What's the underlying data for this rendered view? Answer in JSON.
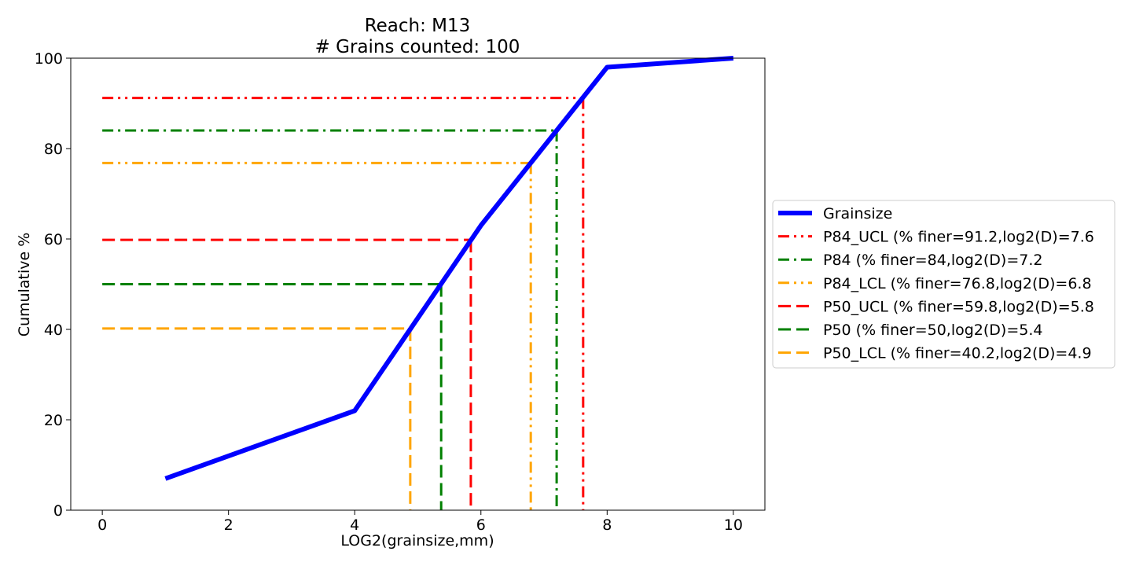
{
  "chart_data": {
    "type": "line",
    "title": "Reach: M13",
    "subtitle": "# Grains counted: 100",
    "xlabel": "LOG2(grainsize,mm)",
    "ylabel": "Cumulative %",
    "xlim": [
      -0.5,
      10.5
    ],
    "ylim": [
      0,
      100
    ],
    "xticks": [
      0,
      2,
      4,
      6,
      8,
      10
    ],
    "yticks": [
      0,
      20,
      40,
      60,
      80,
      100
    ],
    "grid": false,
    "legend_position": "right",
    "series": [
      {
        "name": "Grainsize",
        "color": "#0000ff",
        "style": "solid",
        "x": [
          1,
          4,
          6,
          8,
          10
        ],
        "y": [
          7,
          22,
          63,
          98,
          100
        ]
      }
    ],
    "reference_lines": [
      {
        "name": "P84_UCL (% finer=91.2,log2(D)=7.6",
        "color": "#ff0000",
        "style": "dashdotdot",
        "finer": 91.2,
        "log2d": 7.62
      },
      {
        "name": "P84 (% finer=84,log2(D)=7.2",
        "color": "#008000",
        "style": "dashdot",
        "finer": 84,
        "log2d": 7.2
      },
      {
        "name": "P84_LCL (% finer=76.8,log2(D)=6.8",
        "color": "#ffa500",
        "style": "dashdotdot",
        "finer": 76.8,
        "log2d": 6.79
      },
      {
        "name": "P50_UCL (% finer=59.8,log2(D)=5.8",
        "color": "#ff0000",
        "style": "dashed",
        "finer": 59.8,
        "log2d": 5.84
      },
      {
        "name": "P50 (% finer=50,log2(D)=5.4",
        "color": "#008000",
        "style": "dashed",
        "finer": 50,
        "log2d": 5.37
      },
      {
        "name": "P50_LCL (% finer=40.2,log2(D)=4.9",
        "color": "#ffa500",
        "style": "dashed",
        "finer": 40.2,
        "log2d": 4.88
      }
    ]
  }
}
